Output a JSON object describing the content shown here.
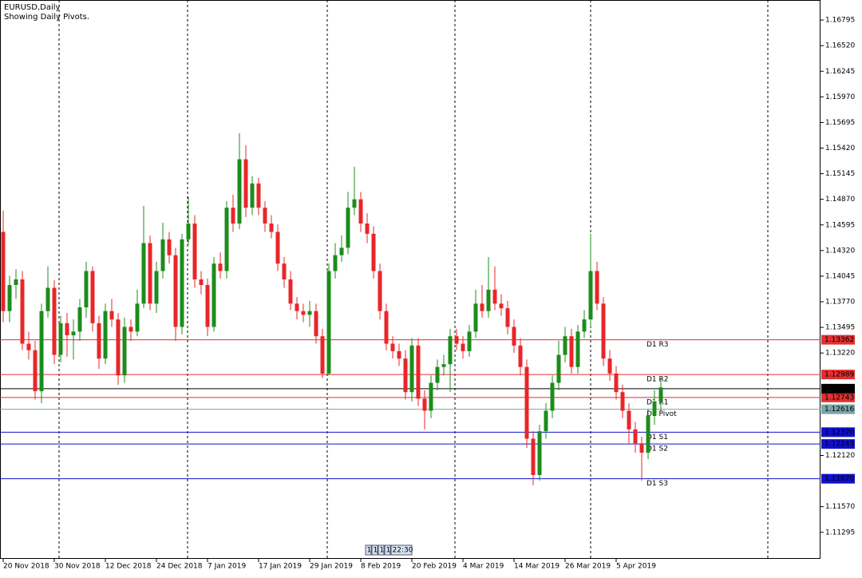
{
  "chart_data": {
    "type": "candlestick",
    "title": "EURUSD,Daily",
    "subtitle": "Showing Daily Pivots.",
    "up_color": "#1c8c1c",
    "down_color": "#e8262a",
    "ylim": [
      1.1101,
      1.1701
    ],
    "yticks": [
      {
        "value": 1.16795,
        "label": "1.16795"
      },
      {
        "value": 1.1652,
        "label": "1.16520"
      },
      {
        "value": 1.16245,
        "label": "1.16245"
      },
      {
        "value": 1.1597,
        "label": "1.15970"
      },
      {
        "value": 1.15695,
        "label": "1.15695"
      },
      {
        "value": 1.1542,
        "label": "1.15420"
      },
      {
        "value": 1.15145,
        "label": "1.15145"
      },
      {
        "value": 1.1487,
        "label": "1.14870"
      },
      {
        "value": 1.14595,
        "label": "1.14595"
      },
      {
        "value": 1.1432,
        "label": "1.14320"
      },
      {
        "value": 1.14045,
        "label": "1.14045"
      },
      {
        "value": 1.1377,
        "label": "1.13770"
      },
      {
        "value": 1.13495,
        "label": "1.13495"
      },
      {
        "value": 1.1322,
        "label": "1.13220"
      },
      {
        "value": 1.1212,
        "label": "1.12120"
      },
      {
        "value": 1.1157,
        "label": "1.11570"
      },
      {
        "value": 1.11295,
        "label": "1.11295"
      }
    ],
    "x_labels": [
      "20 Nov 2018",
      "30 Nov 2018",
      "12 Dec 2018",
      "24 Dec 2018",
      "7 Jan 2019",
      "17 Jan 2019",
      "29 Jan 2019",
      "8 Feb 2019",
      "20 Feb 2019",
      "4 Mar 2019",
      "14 Mar 2019",
      "26 Mar 2019",
      "5 Apr 2019"
    ],
    "open": [
      1.1452,
      1.1367,
      1.1395,
      1.1401,
      1.1332,
      1.1325,
      1.1281,
      1.1367,
      1.1392,
      1.132,
      1.1354,
      1.1341,
      1.1345,
      1.1371,
      1.141,
      1.1354,
      1.1316,
      1.1367,
      1.1358,
      1.1298,
      1.135,
      1.1345,
      1.1375,
      1.144,
      1.1375,
      1.141,
      1.1444,
      1.1427,
      1.135,
      1.1444,
      1.1461,
      1.1401,
      1.1395,
      1.135,
      1.1418,
      1.141,
      1.1478,
      1.1461,
      1.153,
      1.1478,
      1.1504,
      1.1478,
      1.1461,
      1.1452,
      1.1418,
      1.1401,
      1.1375,
      1.1367,
      1.1363,
      1.1367,
      1.134,
      1.13,
      1.141,
      1.1427,
      1.1435,
      1.1478,
      1.1487,
      1.1461,
      1.145,
      1.141,
      1.1367,
      1.1332,
      1.1324,
      1.1316,
      1.128,
      1.133,
      1.1273,
      1.126,
      1.129,
      1.1307,
      1.131,
      1.134,
      1.1332,
      1.1324,
      1.1345,
      1.1375,
      1.1367,
      1.139,
      1.1375,
      1.137,
      1.135,
      1.133,
      1.1307,
      1.123,
      1.1191,
      1.1238,
      1.126,
      1.129,
      1.132,
      1.134,
      1.1307,
      1.1345,
      1.1358,
      1.141,
      1.1375,
      1.1316,
      1.13,
      1.128,
      1.126,
      1.124,
      1.1225,
      1.1215,
      1.1255,
      1.127
    ],
    "high": [
      1.1475,
      1.1405,
      1.1412,
      1.141,
      1.1345,
      1.1335,
      1.1375,
      1.1415,
      1.14,
      1.1362,
      1.1365,
      1.1358,
      1.138,
      1.142,
      1.1415,
      1.1362,
      1.1375,
      1.138,
      1.1365,
      1.136,
      1.1358,
      1.139,
      1.148,
      1.1448,
      1.142,
      1.1462,
      1.1452,
      1.1435,
      1.145,
      1.149,
      1.147,
      1.141,
      1.1402,
      1.1425,
      1.143,
      1.1485,
      1.1492,
      1.1558,
      1.1545,
      1.1512,
      1.151,
      1.1485,
      1.147,
      1.146,
      1.1425,
      1.141,
      1.1382,
      1.1375,
      1.1378,
      1.1375,
      1.1348,
      1.1418,
      1.144,
      1.1448,
      1.1495,
      1.1522,
      1.1495,
      1.1472,
      1.1458,
      1.1418,
      1.1375,
      1.134,
      1.1332,
      1.1325,
      1.1338,
      1.1338,
      1.1282,
      1.1298,
      1.1315,
      1.132,
      1.1348,
      1.1348,
      1.134,
      1.1352,
      1.139,
      1.1395,
      1.1425,
      1.1415,
      1.1385,
      1.1378,
      1.1358,
      1.1338,
      1.1315,
      1.1238,
      1.1245,
      1.1268,
      1.1298,
      1.1335,
      1.135,
      1.1348,
      1.1352,
      1.1368,
      1.145,
      1.142,
      1.1382,
      1.1325,
      1.1308,
      1.1288,
      1.1268,
      1.1248,
      1.1232,
      1.1262,
      1.1282,
      1.1295
    ],
    "low": [
      1.1355,
      1.1355,
      1.138,
      1.1325,
      1.1315,
      1.1272,
      1.1268,
      1.136,
      1.131,
      1.1312,
      1.1318,
      1.1315,
      1.1335,
      1.136,
      1.1345,
      1.1305,
      1.131,
      1.135,
      1.1288,
      1.129,
      1.1335,
      1.134,
      1.137,
      1.1368,
      1.1365,
      1.1402,
      1.1418,
      1.1335,
      1.1342,
      1.1438,
      1.1392,
      1.1385,
      1.134,
      1.1345,
      1.1402,
      1.1402,
      1.1452,
      1.1455,
      1.1468,
      1.147,
      1.147,
      1.1452,
      1.1445,
      1.141,
      1.1392,
      1.1368,
      1.1358,
      1.1355,
      1.135,
      1.1332,
      1.1295,
      1.1298,
      1.1402,
      1.142,
      1.1428,
      1.147,
      1.1452,
      1.144,
      1.1402,
      1.1358,
      1.1325,
      1.1316,
      1.1308,
      1.1272,
      1.127,
      1.1265,
      1.124,
      1.1252,
      1.1282,
      1.1298,
      1.128,
      1.1325,
      1.1316,
      1.1318,
      1.1338,
      1.136,
      1.136,
      1.1368,
      1.1362,
      1.1342,
      1.1322,
      1.1298,
      1.122,
      1.118,
      1.1185,
      1.123,
      1.1252,
      1.1282,
      1.1312,
      1.13,
      1.13,
      1.1338,
      1.135,
      1.1368,
      1.1308,
      1.1292,
      1.1272,
      1.1252,
      1.1225,
      1.1215,
      1.1185,
      1.1208,
      1.1245,
      1.126
    ],
    "close": [
      1.1367,
      1.1395,
      1.1401,
      1.1332,
      1.1325,
      1.1281,
      1.1367,
      1.1392,
      1.132,
      1.1354,
      1.1341,
      1.1345,
      1.1371,
      1.141,
      1.1354,
      1.1316,
      1.1367,
      1.1358,
      1.1298,
      1.135,
      1.1345,
      1.1375,
      1.144,
      1.1375,
      1.141,
      1.1444,
      1.1427,
      1.135,
      1.1444,
      1.1461,
      1.1401,
      1.1395,
      1.135,
      1.1418,
      1.141,
      1.1478,
      1.1461,
      1.153,
      1.1478,
      1.1504,
      1.1478,
      1.1461,
      1.1452,
      1.1418,
      1.1401,
      1.1375,
      1.1367,
      1.1363,
      1.1367,
      1.134,
      1.13,
      1.141,
      1.1427,
      1.1435,
      1.1478,
      1.1487,
      1.1461,
      1.145,
      1.141,
      1.1367,
      1.1332,
      1.1324,
      1.1316,
      1.128,
      1.133,
      1.1273,
      1.126,
      1.129,
      1.1307,
      1.131,
      1.134,
      1.1332,
      1.1324,
      1.1345,
      1.1375,
      1.1367,
      1.139,
      1.1375,
      1.137,
      1.135,
      1.133,
      1.1307,
      1.123,
      1.1191,
      1.1238,
      1.126,
      1.129,
      1.132,
      1.134,
      1.1307,
      1.1345,
      1.1358,
      1.141,
      1.1375,
      1.1316,
      1.13,
      1.128,
      1.126,
      1.124,
      1.1225,
      1.1215,
      1.1255,
      1.127,
      1.1285
    ],
    "levels": [
      {
        "name": "D1 R3",
        "value": 1.13362,
        "value_label": "1.13362",
        "color": "#e03030",
        "box_text": "#ffffff"
      },
      {
        "name": "D1 R2",
        "value": 1.12989,
        "value_label": "1.12989",
        "color": "#e03030",
        "box_text": "#ffffff"
      },
      {
        "name": "D1 R1",
        "value": 1.12743,
        "value_label": "1.12743",
        "color": "#e03030",
        "box_text": "#ffffff"
      },
      {
        "name": "D1 Pivot",
        "value": 1.12616,
        "value_label": "1.12616",
        "color": "#78a6aa",
        "box_text": "#ffffff"
      },
      {
        "name": "D1 S1",
        "value": 1.1237,
        "value_label": "1.12370",
        "color": "#1010cc",
        "box_text": "#ffffff"
      },
      {
        "name": "D1 S2",
        "value": 1.12243,
        "value_label": "1.12243",
        "color": "#1010cc",
        "box_text": "#ffffff"
      },
      {
        "name": "D1 S3",
        "value": 1.1187,
        "value_label": "1.11870",
        "color": "#1010cc",
        "box_text": "#ffffff"
      }
    ],
    "current_price": 1.12837,
    "current_price_label": "1.12837",
    "scroll_labels": [
      "1",
      "1",
      "1",
      "1",
      "22:30"
    ]
  }
}
